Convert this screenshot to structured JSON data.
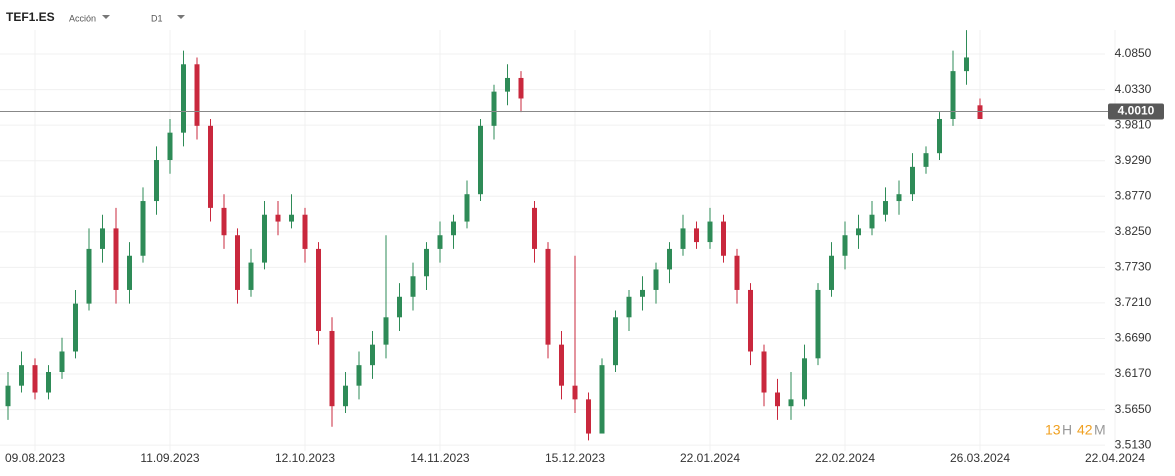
{
  "header": {
    "symbol": "TEF1.ES",
    "type": "Acción",
    "timeframe": "D1"
  },
  "countdown": {
    "hours": "13",
    "hours_unit": "H",
    "minutes": "42",
    "minutes_unit": "M"
  },
  "chart_data": {
    "type": "candlestick",
    "categories": [
      null,
      null,
      "09.08.2023",
      null,
      null,
      null,
      null,
      null,
      null,
      null,
      null,
      null,
      "11.09.2023",
      null,
      null,
      null,
      null,
      null,
      null,
      null,
      null,
      null,
      "12.10.2023",
      null,
      null,
      null,
      null,
      null,
      null,
      null,
      null,
      null,
      "14.11.2023",
      null,
      null,
      null,
      null,
      null,
      null,
      null,
      null,
      null,
      "15.12.2023",
      null,
      null,
      null,
      null,
      null,
      null,
      null,
      null,
      null,
      "22.01.2024",
      null,
      null,
      null,
      null,
      null,
      null,
      null,
      null,
      null,
      "22.02.2024",
      null,
      null,
      null,
      null,
      null,
      null,
      null,
      null,
      null,
      "26.03.2024",
      null,
      null,
      null,
      null,
      null,
      null,
      null,
      null,
      null,
      "22.04.2024"
    ],
    "open": [
      3.57,
      3.6,
      3.63,
      3.59,
      3.62,
      3.65,
      3.72,
      3.8,
      3.83,
      3.74,
      3.79,
      3.87,
      3.93,
      3.97,
      4.07,
      3.98,
      3.86,
      3.82,
      3.74,
      3.78,
      3.85,
      3.84,
      3.85,
      3.8,
      3.68,
      3.57,
      3.6,
      3.63,
      3.66,
      3.7,
      3.73,
      3.76,
      3.8,
      3.82,
      3.84,
      3.88,
      3.98,
      4.03,
      4.05,
      3.86,
      3.8,
      3.66,
      3.6,
      3.58,
      3.53,
      3.63,
      3.7,
      3.73,
      3.74,
      3.77,
      3.8,
      3.83,
      3.81,
      3.84,
      3.79,
      3.74,
      3.65,
      3.59,
      3.57,
      3.58,
      3.64,
      3.74,
      3.79,
      3.82,
      3.83,
      3.85,
      3.87,
      3.88,
      3.92,
      3.94,
      3.99,
      4.06,
      4.01,
      null,
      null,
      null,
      null,
      null,
      null,
      null,
      null,
      null,
      null
    ],
    "high": [
      3.62,
      3.65,
      3.64,
      3.63,
      3.67,
      3.74,
      3.83,
      3.85,
      3.86,
      3.81,
      3.89,
      3.95,
      3.99,
      4.09,
      4.08,
      3.99,
      3.88,
      3.83,
      3.8,
      3.87,
      3.87,
      3.88,
      3.86,
      3.81,
      3.7,
      3.62,
      3.65,
      3.68,
      3.82,
      3.75,
      3.78,
      3.81,
      3.84,
      3.85,
      3.9,
      3.99,
      4.04,
      4.07,
      4.06,
      3.87,
      3.81,
      3.68,
      3.79,
      3.59,
      3.64,
      3.71,
      3.74,
      3.76,
      3.78,
      3.81,
      3.85,
      3.84,
      3.86,
      3.85,
      3.8,
      3.75,
      3.66,
      3.61,
      3.62,
      3.66,
      3.75,
      3.81,
      3.84,
      3.85,
      3.87,
      3.89,
      3.9,
      3.94,
      3.95,
      4.0,
      4.09,
      4.12,
      4.02,
      null,
      null,
      null,
      null,
      null,
      null,
      null,
      null,
      null,
      null
    ],
    "low": [
      3.55,
      3.59,
      3.58,
      3.58,
      3.61,
      3.64,
      3.71,
      3.78,
      3.72,
      3.72,
      3.78,
      3.85,
      3.91,
      3.95,
      3.96,
      3.84,
      3.8,
      3.72,
      3.73,
      3.77,
      3.82,
      3.83,
      3.78,
      3.66,
      3.54,
      3.56,
      3.58,
      3.61,
      3.64,
      3.68,
      3.71,
      3.74,
      3.78,
      3.8,
      3.83,
      3.87,
      3.96,
      4.01,
      4.0,
      3.78,
      3.64,
      3.58,
      3.56,
      3.52,
      3.53,
      3.62,
      3.68,
      3.71,
      3.72,
      3.75,
      3.79,
      3.8,
      3.8,
      3.78,
      3.72,
      3.63,
      3.57,
      3.55,
      3.55,
      3.57,
      3.63,
      3.73,
      3.77,
      3.8,
      3.82,
      3.84,
      3.85,
      3.87,
      3.91,
      3.93,
      3.98,
      4.04,
      3.99,
      null,
      null,
      null,
      null,
      null,
      null,
      null,
      null,
      null,
      null
    ],
    "close": [
      3.6,
      3.63,
      3.59,
      3.62,
      3.65,
      3.72,
      3.8,
      3.83,
      3.74,
      3.79,
      3.87,
      3.93,
      3.97,
      4.07,
      3.98,
      3.86,
      3.82,
      3.74,
      3.78,
      3.85,
      3.84,
      3.85,
      3.8,
      3.68,
      3.57,
      3.6,
      3.63,
      3.66,
      3.7,
      3.73,
      3.76,
      3.8,
      3.82,
      3.84,
      3.88,
      3.98,
      4.03,
      4.05,
      4.02,
      3.8,
      3.66,
      3.6,
      3.58,
      3.53,
      3.63,
      3.7,
      3.73,
      3.74,
      3.77,
      3.8,
      3.83,
      3.81,
      3.84,
      3.79,
      3.74,
      3.65,
      3.59,
      3.57,
      3.58,
      3.64,
      3.74,
      3.79,
      3.82,
      3.83,
      3.85,
      3.87,
      3.88,
      3.92,
      3.94,
      3.99,
      4.06,
      4.08,
      3.99,
      null,
      null,
      null,
      null,
      null,
      null,
      null,
      null,
      null,
      null
    ],
    "up_color": "#2e8b57",
    "down_color": "#c9283d",
    "ylim": [
      3.484,
      4.164
    ],
    "yticks": [
      {
        "value": 3.513,
        "label": "3.5130"
      },
      {
        "value": 3.565,
        "label": "3.5650"
      },
      {
        "value": 3.617,
        "label": "3.6170"
      },
      {
        "value": 3.669,
        "label": "3.6690"
      },
      {
        "value": 3.721,
        "label": "3.7210"
      },
      {
        "value": 3.773,
        "label": "3.7730"
      },
      {
        "value": 3.825,
        "label": "3.8250"
      },
      {
        "value": 3.877,
        "label": "3.8770"
      },
      {
        "value": 3.929,
        "label": "3.9290"
      },
      {
        "value": 3.981,
        "label": "3.9810"
      },
      {
        "value": 4.033,
        "label": "4.0330"
      },
      {
        "value": 4.085,
        "label": "4.0850"
      }
    ],
    "last_price": {
      "value": 4.001,
      "label": "4.0010"
    },
    "grid": true
  }
}
